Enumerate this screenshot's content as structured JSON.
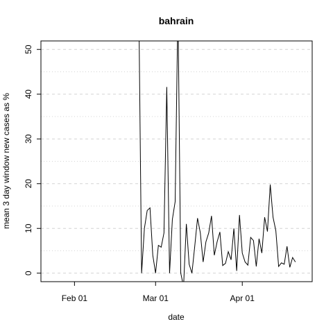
{
  "chart_data": {
    "type": "line",
    "title": "bahrain",
    "x_label": "date",
    "y_label": "mean  3  day window new cases as %",
    "x": [
      "Feb 24",
      "Feb 25",
      "Feb 26",
      "Feb 27",
      "Feb 28",
      "Feb 29",
      "Mar 01",
      "Mar 02",
      "Mar 03",
      "Mar 04",
      "Mar 05",
      "Mar 06",
      "Mar 07",
      "Mar 08",
      "Mar 09",
      "Mar 10",
      "Mar 11",
      "Mar 12",
      "Mar 13",
      "Mar 14",
      "Mar 15",
      "Mar 16",
      "Mar 17",
      "Mar 18",
      "Mar 19",
      "Mar 20",
      "Mar 21",
      "Mar 22",
      "Mar 23",
      "Mar 24",
      "Mar 25",
      "Mar 26",
      "Mar 27",
      "Mar 28",
      "Mar 29",
      "Mar 30",
      "Mar 31",
      "Apr 01",
      "Apr 02",
      "Apr 03",
      "Apr 04",
      "Apr 05",
      "Apr 06",
      "Apr 07",
      "Apr 08",
      "Apr 09",
      "Apr 10",
      "Apr 11",
      "Apr 12",
      "Apr 13",
      "Apr 14",
      "Apr 15",
      "Apr 16",
      "Apr 17",
      "Apr 18",
      "Apr 19",
      "Apr 20"
    ],
    "series": [
      {
        "color": "#000000",
        "values": [
          60,
          0,
          10,
          14,
          14.6,
          4,
          0,
          6.2,
          5.8,
          9,
          41.6,
          0,
          12,
          16,
          60,
          0,
          -3,
          11,
          2,
          0,
          6,
          12.3,
          9,
          2.5,
          7,
          9,
          12.8,
          4,
          7,
          9.2,
          1.7,
          2.2,
          4.8,
          3,
          10,
          0.5,
          13,
          4.5,
          2.5,
          1.8,
          8,
          7.3,
          1.5,
          7.7,
          4.5,
          12.5,
          9.3,
          19.8,
          12.5,
          9.5,
          1.5,
          2.3,
          2,
          6,
          1.3,
          3.5,
          2.5
        ]
      }
    ],
    "xlim": [
      "Jan 20",
      "Apr 26"
    ],
    "xticks": [
      "Feb 01",
      "Mar 01",
      "Apr 01"
    ],
    "ylim": [
      -1.9,
      51.9
    ],
    "yticks": [
      0,
      10,
      20,
      30,
      40,
      50
    ],
    "yminorticks": [
      5,
      15,
      25,
      35,
      45
    ],
    "grid": true
  }
}
